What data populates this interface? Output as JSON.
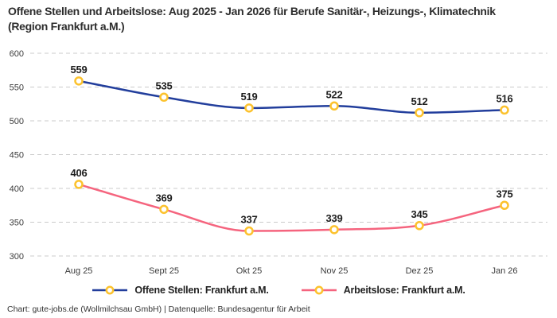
{
  "chart_data": {
    "type": "line",
    "title": "Offene Stellen und Arbeitslose: Aug 2025 - Jan 2026 für Berufe Sanitär-, Heizungs-, Klimatechnik (Region Frankfurt a.M.)",
    "categories": [
      "Aug 25",
      "Sept 25",
      "Okt 25",
      "Nov 25",
      "Dez 25",
      "Jan 26"
    ],
    "series": [
      {
        "name": "Offene Stellen: Frankfurt a.M.",
        "values": [
          559,
          535,
          519,
          522,
          512,
          516
        ],
        "color": "#223e9c"
      },
      {
        "name": "Arbeitslose: Frankfurt a.M.",
        "values": [
          406,
          369,
          337,
          339,
          345,
          375
        ],
        "color": "#f5647e"
      }
    ],
    "ylim": [
      300,
      600
    ],
    "yticks": [
      300,
      350,
      400,
      450,
      500,
      550,
      600
    ],
    "xlabel": "",
    "ylabel": "",
    "grid": "horizontal-dashed",
    "legend_position": "bottom",
    "markers": {
      "shape": "circle",
      "fill": "#ffffff",
      "stroke": "#fcc22d"
    },
    "data_labels": "above-points"
  },
  "colors": {
    "grid": "#cbcbcb",
    "tick_text": "#3c3c3c",
    "value_text": "#1e1e1e",
    "title_text": "#2d2d2d",
    "background": "#ffffff"
  },
  "footer": {
    "text": "Chart: gute-jobs.de (Wollmilchsau GmbH) | Datenquelle: Bundesagentur für Arbeit"
  }
}
